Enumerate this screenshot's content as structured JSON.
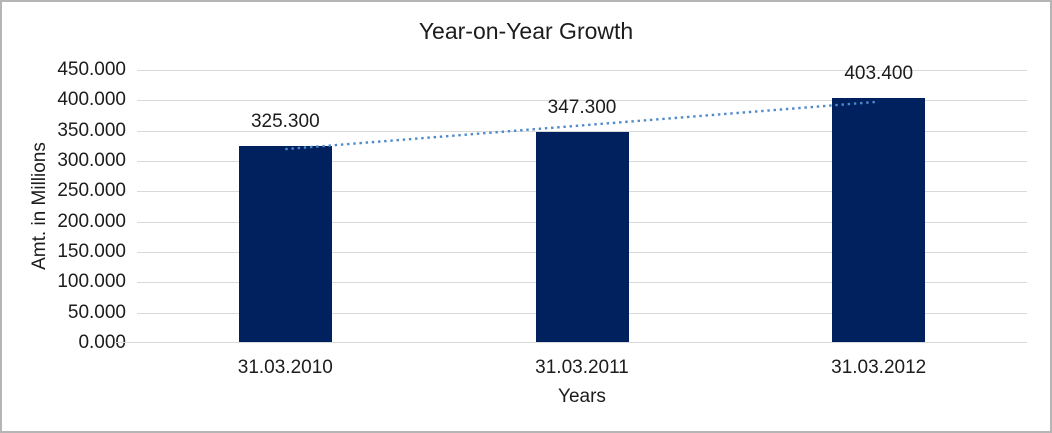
{
  "chart_data": {
    "type": "bar",
    "title": "Year-on-Year Growth",
    "categories": [
      "31.03.2010",
      "31.03.2011",
      "31.03.2012"
    ],
    "values": [
      325.3,
      347.3,
      403.4
    ],
    "data_labels": [
      "325.300",
      "347.300",
      "403.400"
    ],
    "xlabel": "Years",
    "ylabel": "Amt. in Millions",
    "ylim": [
      0,
      450
    ],
    "ytick_step": 50,
    "ytick_labels": [
      "0.000",
      "50.000",
      "100.000",
      "150.000",
      "200.000",
      "250.000",
      "300.000",
      "350.000",
      "400.000",
      "450.000"
    ],
    "grid": true,
    "legend": "none",
    "bar_color": "#00215e",
    "gridline_color": "#d9d9d9",
    "text_color": "#1c1c1c",
    "trendline": {
      "type": "linear",
      "style": "dotted",
      "color": "#4e89cc"
    }
  }
}
